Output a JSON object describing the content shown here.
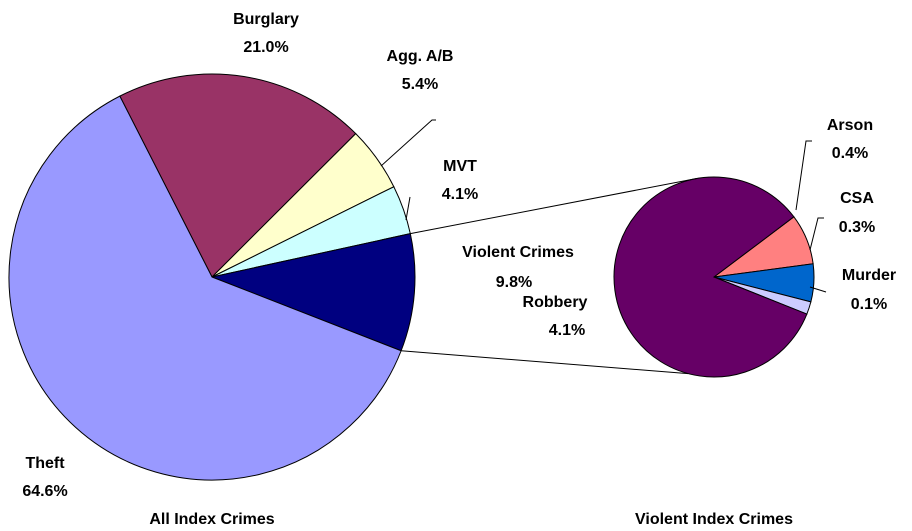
{
  "chart_data": [
    {
      "type": "pie",
      "title": "All Index Crimes",
      "categories": [
        "Burglary",
        "Agg. A/B",
        "MVT",
        "Violent Crimes",
        "Theft"
      ],
      "values": [
        21.0,
        5.4,
        4.1,
        9.8,
        64.6
      ],
      "value_labels": [
        "21.0%",
        "5.4%",
        "4.1%",
        "9.8%",
        "64.6%"
      ],
      "colors": [
        "#993366",
        "#ffffcc",
        "#ccffff",
        "#000080",
        "#9999ff"
      ]
    },
    {
      "type": "pie",
      "title": "Violent Index Crimes",
      "categories": [
        "Arson",
        "CSA",
        "Murder",
        "Robbery"
      ],
      "values": [
        0.4,
        0.3,
        0.1,
        4.1
      ],
      "value_labels": [
        "0.4%",
        "0.3%",
        "0.1%",
        "4.1%"
      ],
      "colors": [
        "#ff8080",
        "#0066cc",
        "#ccccff",
        "#660066"
      ]
    }
  ]
}
